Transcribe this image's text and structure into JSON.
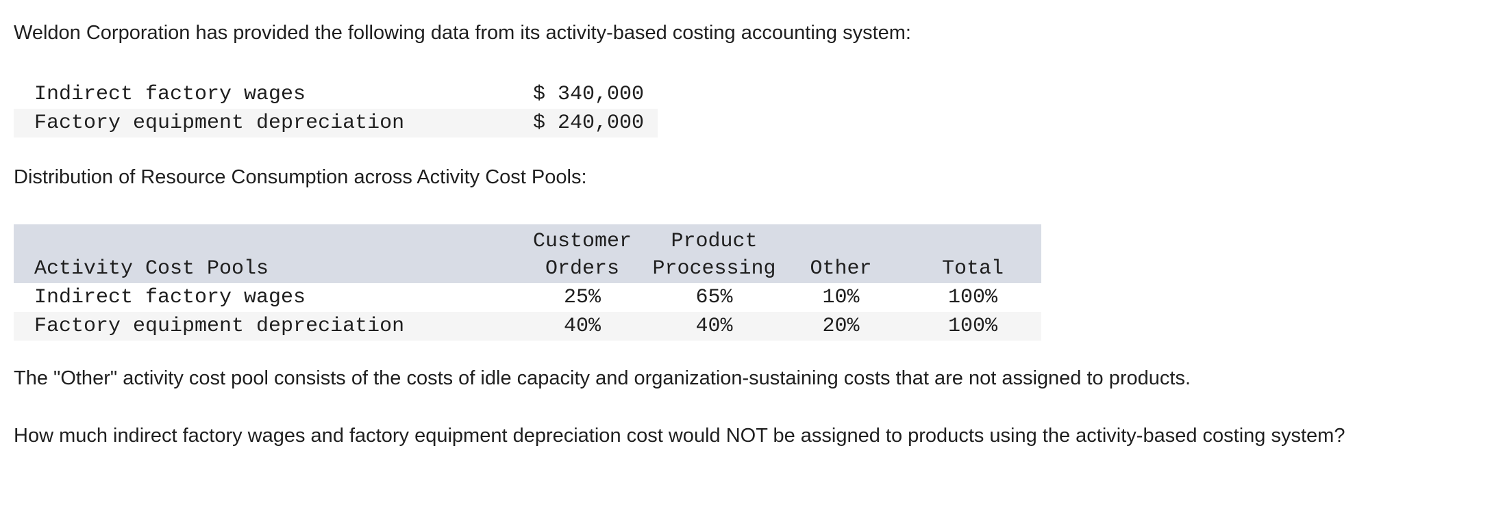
{
  "intro": "Weldon Corporation has provided the following data from its activity-based costing accounting system:",
  "costs": [
    {
      "label": "Indirect factory wages",
      "amount": "$ 340,000"
    },
    {
      "label": "Factory equipment depreciation",
      "amount": "$ 240,000"
    }
  ],
  "distribution_title": "Distribution of Resource Consumption across Activity Cost Pools:",
  "pool_table": {
    "header_top": [
      "",
      "Customer",
      "Product",
      "",
      ""
    ],
    "header_bottom": [
      "Activity Cost Pools",
      "Orders",
      "Processing",
      "Other",
      "Total"
    ],
    "rows": [
      {
        "label": "Indirect factory wages",
        "values": [
          "25%",
          "65%",
          "10%",
          "100%"
        ]
      },
      {
        "label": "Factory equipment depreciation",
        "values": [
          "40%",
          "40%",
          "20%",
          "100%"
        ]
      }
    ]
  },
  "other_note": "The \"Other\" activity cost pool consists of the costs of idle capacity and organization-sustaining costs that are not assigned to products.",
  "question": "How much indirect factory wages and factory equipment depreciation cost would NOT be assigned to products using the activity-based costing system?",
  "colors": {
    "header_bg": "#d8dce5",
    "alt_row_bg": "#f5f5f5",
    "text": "#1f1f1f"
  }
}
